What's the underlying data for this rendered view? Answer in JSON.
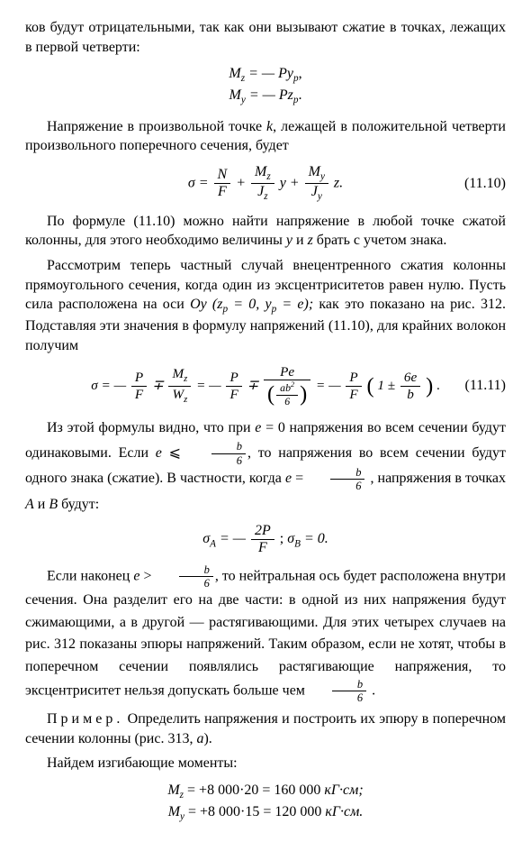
{
  "p1": "ков будут отрицательными, так как они вызывают сжатие в точках, лежащих в первой четверти:",
  "eq1a_lhs": "M",
  "eq1a_sub": "z",
  "eq1a_rhs1": " = — Py",
  "eq1a_rhs1sub": "p",
  "eq1a_end": ",",
  "eq1b_lhs": "M",
  "eq1b_sub": "y",
  "eq1b_rhs1": " = — Pz",
  "eq1b_rhs1sub": "p",
  "eq1b_end": ".",
  "p2a": "Напряжение в произвольной точке ",
  "p2_k": "k",
  "p2b": ", лежащей в положительной четверти произвольного поперечного сечения, будет",
  "eq2_sigma": "σ = ",
  "eq2_f1n": "N",
  "eq2_f1d": "F",
  "eq2_plus1": " + ",
  "eq2_f2n": "M",
  "eq2_f2nsub": "z",
  "eq2_f2d": "J",
  "eq2_f2dsub": "z",
  "eq2_y": " y + ",
  "eq2_f3n": "M",
  "eq2_f3nsub": "y",
  "eq2_f3d": "J",
  "eq2_f3dsub": "y",
  "eq2_z": " z.",
  "eq2_num": "(11.10)",
  "p3a": "По формуле (11.10) можно найти напряжение в любой точке сжатой колонны, для этого необходимо величины ",
  "p3_y": "y",
  "p3_and": " и ",
  "p3_z": "z",
  "p3b": " брать с учетом знака.",
  "p4a": "Рассмотрим теперь частный случай внецентренного сжатия колонны прямоугольного сечения, когда один из эксцентриситетов равен нулю. Пусть сила расположена на оси ",
  "p4_Oy": "Oy",
  "p4_par": " (z",
  "p4_par_psub": "p",
  "p4_par_mid": " = 0,  y",
  "p4_par_psub2": "p",
  "p4_par_end": " = e); ",
  "p4b": "как это показано на рис. 312. Подставляя эти значения в формулу напряжений (11.10), для крайних волокон получим",
  "eq3_start": "σ = — ",
  "eq3_f1n": "P",
  "eq3_f1d": "F",
  "eq3_mp1": " ∓ ",
  "eq3_f2n": "M",
  "eq3_f2nsub": "z",
  "eq3_f2d": "W",
  "eq3_f2dsub": "z",
  "eq3_eq2": " = — ",
  "eq3_f3n": "P",
  "eq3_f3d": "F",
  "eq3_mp2": " ∓ ",
  "eq3_f4n": "Pe",
  "eq3_f4d_inner_n": "ab",
  "eq3_f4d_inner_sup": "2",
  "eq3_f4d_inner_d": "6",
  "eq3_eq3": " = — ",
  "eq3_f5n": "P",
  "eq3_f5d": "F",
  "eq3_paren_inner1": " 1 ± ",
  "eq3_f6n": "6e",
  "eq3_f6d": "b",
  "eq3_dot": " .",
  "eq3_num": "(11.11)",
  "p5a": "Из этой формулы видно, что при ",
  "p5_e": "e",
  "p5b": " = 0 напряжения во всем сечении будут одинаковыми. Если ",
  "p5_e2": "e",
  "p5_le": " ⩽ ",
  "p5_fr_n": "b",
  "p5_fr_d": "6",
  "p5c": ", то напряжения во всем сечении будут одного знака (сжатие). В частности, когда ",
  "p5_e3": "e",
  "p5_eq": " = ",
  "p5_fr2_n": "b",
  "p5_fr2_d": "6",
  "p5d": " , напряжения в точках ",
  "p5_A": "A",
  "p5_and2": " и ",
  "p5_B": "B",
  "p5e": " будут:",
  "eq4_sigA": "σ",
  "eq4_sigA_sub": "A",
  "eq4_eq1": " = — ",
  "eq4_fr_n": "2P",
  "eq4_fr_d": "F",
  "eq4_sep": " ;   ",
  "eq4_sigB": "σ",
  "eq4_sigB_sub": "B",
  "eq4_eq2": " = 0.",
  "p6a": "Если наконец ",
  "p6_e": "e",
  "p6_gt": " > ",
  "p6_fr_n": "b",
  "p6_fr_d": "6",
  "p6b": ", то нейтральная ось будет расположена внутри сечения. Она разделит его на две части: в одной из них напряжения будут сжимающими, а в другой — растягивающими. Для этих четырех случаев на рис. 312 показаны эпюры напряжений. Таким образом, если не хотят, чтобы в поперечном сечении появлялись растягивающие напряжения, то эксцентриситет нельзя допускать больше чем ",
  "p6_fr2_n": "b",
  "p6_fr2_d": "6",
  "p6c": " .",
  "p7_sp": "Пример.",
  "p7": " Определить напряжения и построить их эпюру в поперечном сечении колонны (рис. 313, ",
  "p7_a": "a",
  "p7end": ").",
  "p8": "Найдем изгибающие моменты:",
  "eq5a_M": "M",
  "eq5a_sub": "z",
  "eq5a_body": " = +8 000·20 = 160 000  ",
  "eq5a_unit": "кГ·см;",
  "eq5b_M": "M",
  "eq5b_sub": "y",
  "eq5b_body": " = +8 000·15 = 120 000  ",
  "eq5b_unit": "кГ·см."
}
